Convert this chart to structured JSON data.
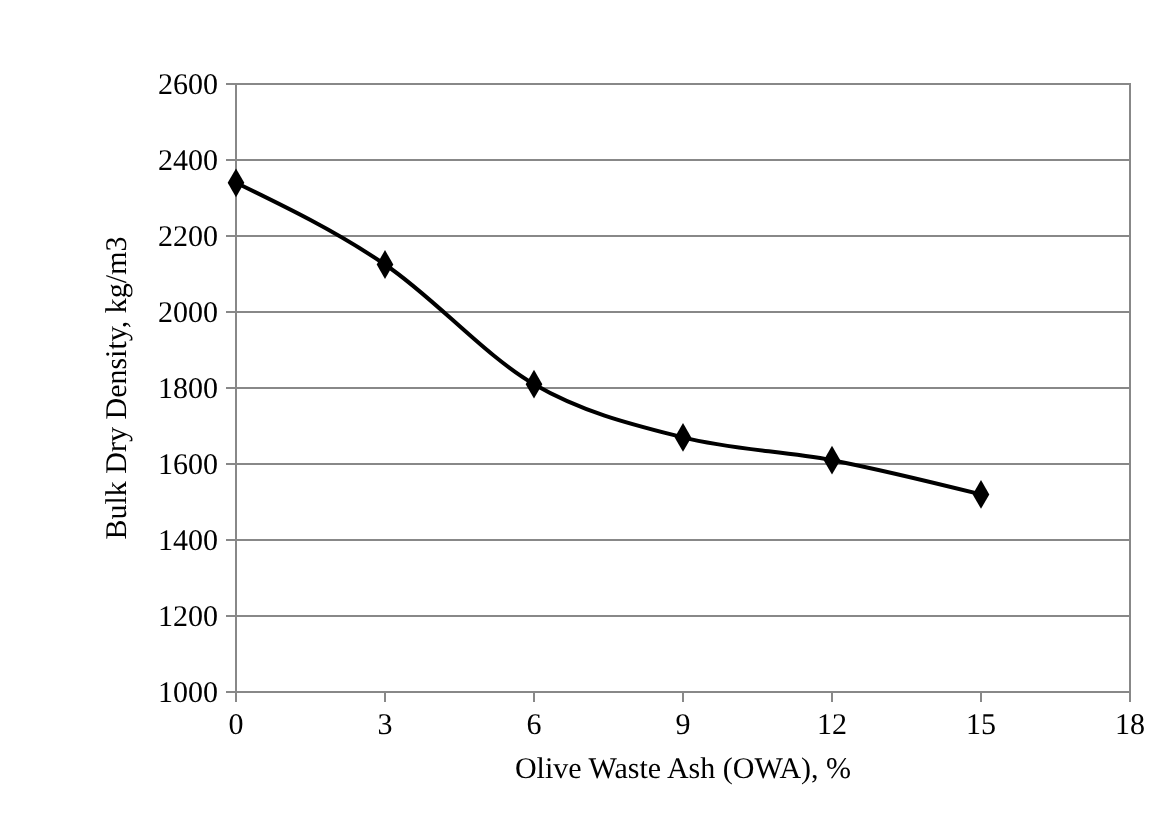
{
  "chart_data": {
    "type": "line",
    "xlabel": "Olive Waste Ash (OWA), %",
    "ylabel": "Bulk Dry Density, kg/m3",
    "x": [
      0,
      3,
      6,
      9,
      12,
      15
    ],
    "series": [
      {
        "color": "#000000",
        "values": [
          2340,
          2125,
          1810,
          1670,
          1610,
          1520
        ]
      }
    ],
    "xlim": [
      0,
      18
    ],
    "xticks": [
      0,
      3,
      6,
      9,
      12,
      15,
      18
    ],
    "ylim": [
      1000,
      2600
    ],
    "yticks": [
      1000,
      1200,
      1400,
      1600,
      1800,
      2000,
      2200,
      2400,
      2600
    ],
    "grid": "y",
    "marker": "diamond",
    "line_style": "solid"
  }
}
